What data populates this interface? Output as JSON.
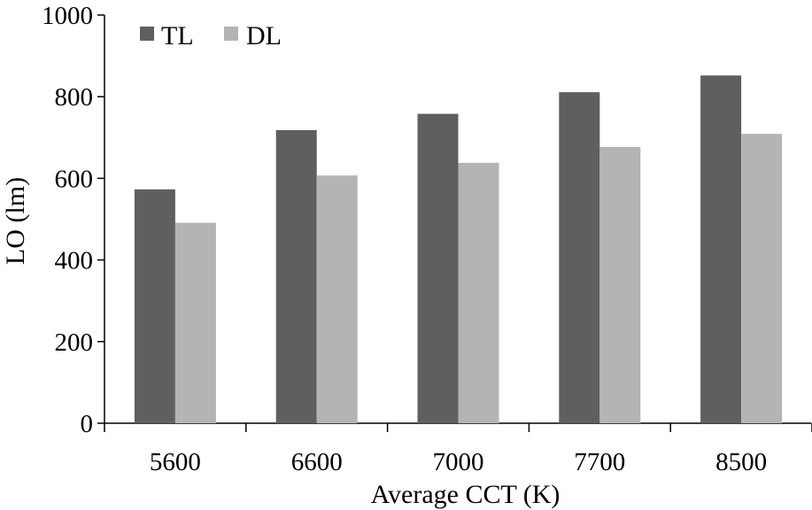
{
  "chart_data": {
    "type": "bar",
    "title": "",
    "xlabel": "Average CCT (K)",
    "ylabel": "LO (lm)",
    "categories": [
      "5600",
      "6600",
      "7000",
      "7700",
      "8500"
    ],
    "series": [
      {
        "name": "TL",
        "color": "#5f5f5f",
        "values": [
          573,
          718,
          758,
          811,
          852
        ]
      },
      {
        "name": "DL",
        "color": "#b4b4b4",
        "values": [
          491,
          607,
          638,
          677,
          709
        ]
      }
    ],
    "ylim": [
      0,
      1000
    ],
    "yticks": [
      "0",
      "200",
      "400",
      "600",
      "800",
      "1000"
    ],
    "grid": false,
    "legend_position": "top-left"
  }
}
